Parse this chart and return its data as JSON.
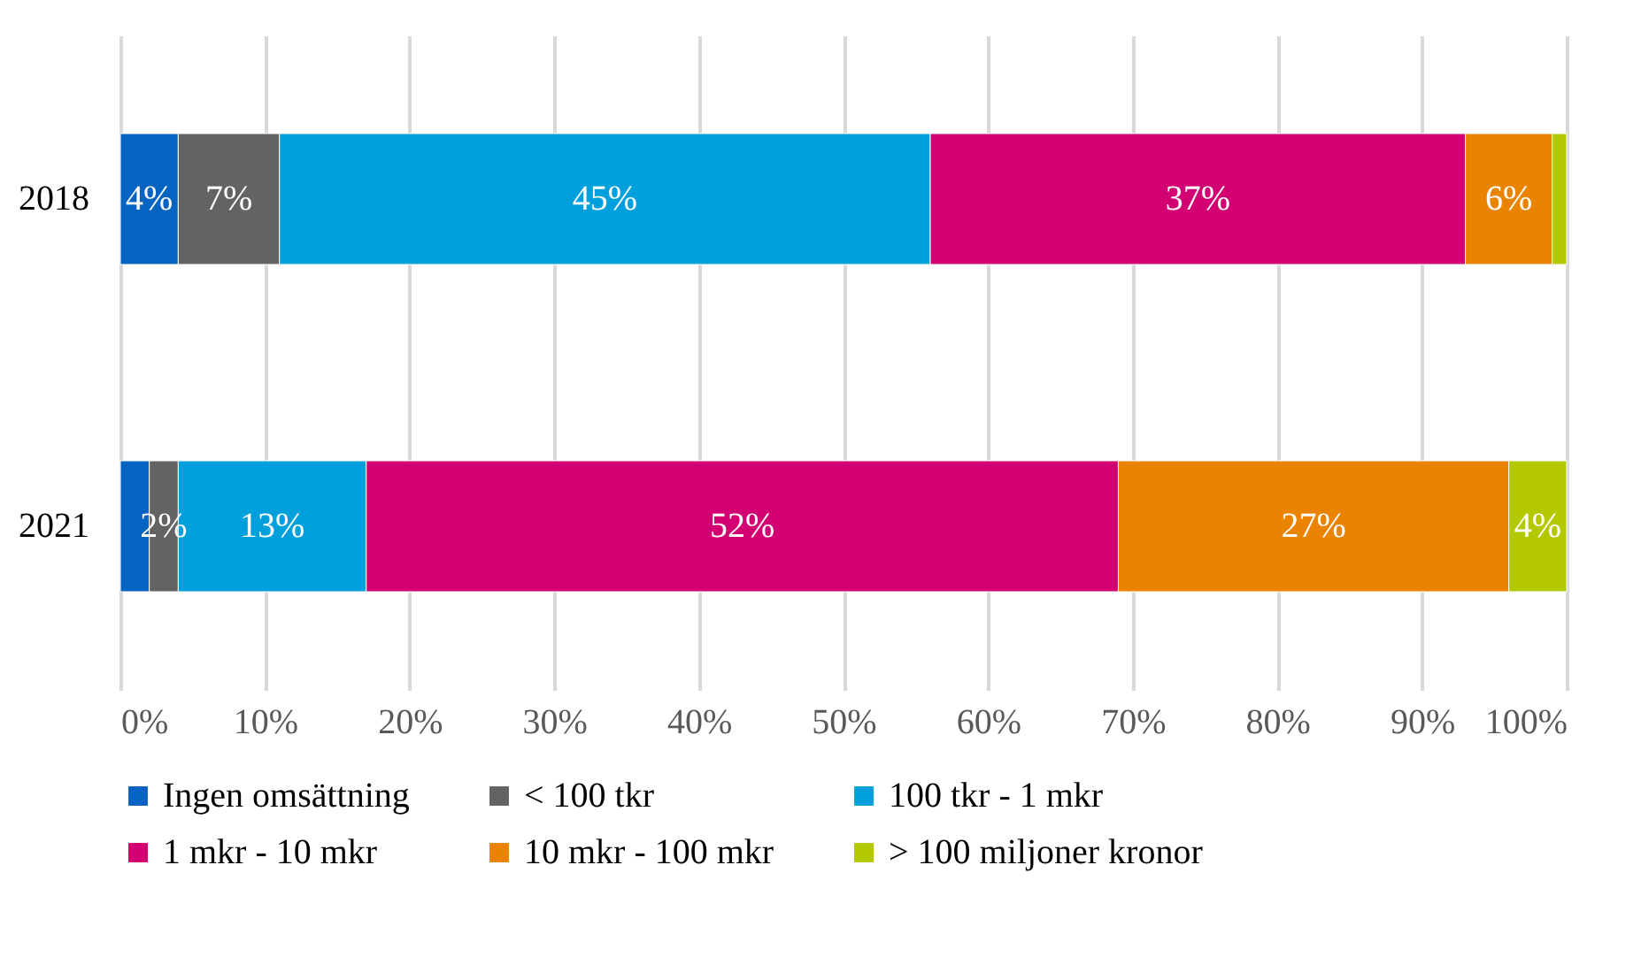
{
  "chart_data": {
    "type": "bar",
    "orientation": "horizontal",
    "stacked": true,
    "categories": [
      "2018",
      "2021"
    ],
    "series": [
      {
        "name": "Ingen omsättning",
        "color": "#0563c1",
        "values": [
          4,
          2
        ],
        "value_labels": [
          "4%",
          null
        ]
      },
      {
        "name": "< 100 tkr",
        "color": "#636363",
        "values": [
          7,
          2
        ],
        "value_labels": [
          "7%",
          "2%"
        ]
      },
      {
        "name": "100 tkr - 1 mkr",
        "color": "#00a0dc",
        "values": [
          45,
          13
        ],
        "value_labels": [
          "45%",
          "13%"
        ]
      },
      {
        "name": "1 mkr - 10 mkr",
        "color": "#d20073",
        "values": [
          37,
          52
        ],
        "value_labels": [
          "37%",
          "52%"
        ]
      },
      {
        "name": "10 mkr - 100 mkr",
        "color": "#ea8300",
        "values": [
          6,
          27
        ],
        "value_labels": [
          "6%",
          "27%"
        ]
      },
      {
        "name": "> 100 miljoner kronor",
        "color": "#b4c800",
        "values": [
          1,
          4
        ],
        "value_labels": [
          null,
          "4%"
        ]
      }
    ],
    "xlim": [
      0,
      100
    ],
    "xticks": [
      {
        "value": 0,
        "label": "0%"
      },
      {
        "value": 10,
        "label": "10%"
      },
      {
        "value": 20,
        "label": "20%"
      },
      {
        "value": 30,
        "label": "30%"
      },
      {
        "value": 40,
        "label": "40%"
      },
      {
        "value": 50,
        "label": "50%"
      },
      {
        "value": 60,
        "label": "60%"
      },
      {
        "value": 70,
        "label": "70%"
      },
      {
        "value": 80,
        "label": "80%"
      },
      {
        "value": 90,
        "label": "90%"
      },
      {
        "value": 100,
        "label": "100%"
      }
    ],
    "grid": "x",
    "legend": "bottom"
  }
}
